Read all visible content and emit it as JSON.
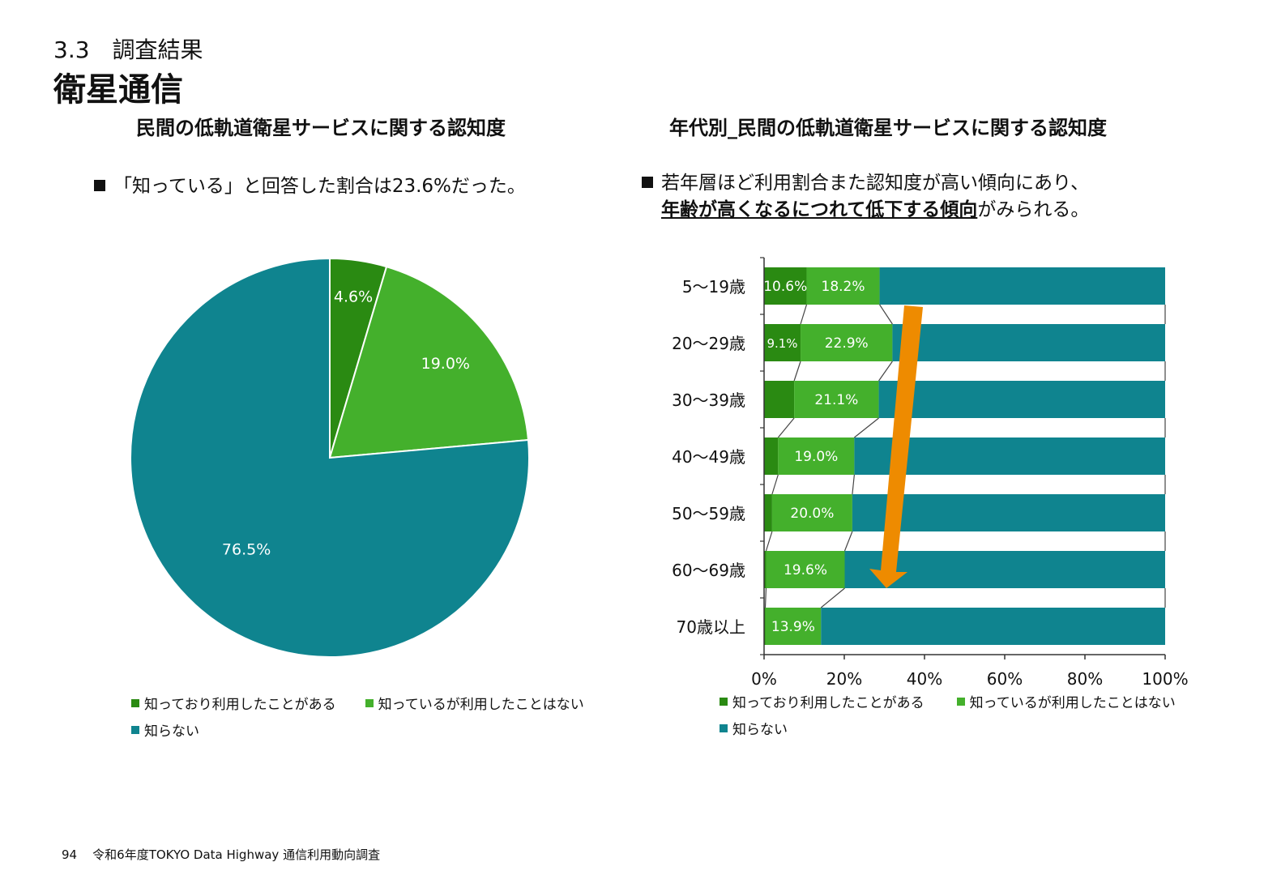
{
  "header": {
    "section_number": "3.3　調査結果",
    "title": "衛星通信"
  },
  "colors": {
    "know_used": "#2a8a12",
    "know_not_used": "#44b02c",
    "not_know": "#0f848f",
    "arrow": "#ee8b00"
  },
  "legend": {
    "know_used": "知っており利用したことがある",
    "know_not_used": "知っているが利用したことはない",
    "not_know": "知らない"
  },
  "left_panel": {
    "title": "民間の低軌道衛星サービスに関する認知度",
    "bullet": "「知っている」と回答した割合は23.6%だった。"
  },
  "right_panel": {
    "title": "年代別_民間の低軌道衛星サービスに関する認知度",
    "bullet_line1": "若年層ほど利用割合また認知度が高い傾向にあり、",
    "bullet_line2_emphasis": "年齢が高くなるにつれて低下する傾向",
    "bullet_line2_rest": "がみられる。"
  },
  "chart_data": [
    {
      "type": "pie",
      "title": "民間の低軌道衛星サービスに関する認知度",
      "slices": [
        {
          "name": "知っており利用したことがある",
          "value": 4.6,
          "label": "4.6%"
        },
        {
          "name": "知っているが利用したことはない",
          "value": 19.0,
          "label": "19.0%"
        },
        {
          "name": "知らない",
          "value": 76.5,
          "label": "76.5%"
        }
      ]
    },
    {
      "type": "bar",
      "orientation": "horizontal",
      "stacked": "100%",
      "title": "年代別_民間の低軌道衛星サービスに関する認知度",
      "categories": [
        "5〜19歳",
        "20〜29歳",
        "30〜39歳",
        "40〜49歳",
        "50〜59歳",
        "60〜69歳",
        "70歳以上"
      ],
      "series": [
        {
          "name": "知っており利用したことがある",
          "values": [
            10.6,
            9.1,
            7.5,
            3.5,
            2.0,
            0.5,
            0.3
          ],
          "labels": [
            "10.6%",
            "9.1%",
            "",
            "",
            "",
            "",
            ""
          ]
        },
        {
          "name": "知っているが利用したことはない",
          "values": [
            18.2,
            22.9,
            21.1,
            19.0,
            20.0,
            19.6,
            13.9
          ],
          "labels": [
            "18.2%",
            "22.9%",
            "21.1%",
            "19.0%",
            "20.0%",
            "19.6%",
            "13.9%"
          ]
        },
        {
          "name": "知らない",
          "values": [
            71.2,
            68.0,
            71.4,
            77.5,
            78.0,
            79.9,
            85.8
          ],
          "labels": [
            "",
            "",
            "",
            "",
            "",
            "",
            ""
          ]
        }
      ],
      "xlim": [
        0,
        100
      ],
      "xticks": [
        "0%",
        "20%",
        "40%",
        "60%",
        "80%",
        "100%"
      ],
      "series_lines": true,
      "annotation": "downward arrow indicating decreasing awareness with age",
      "legend_position": "bottom"
    }
  ],
  "footer": {
    "page_number": "94",
    "document": "令和6年度TOKYO Data Highway 通信利用動向調査"
  }
}
